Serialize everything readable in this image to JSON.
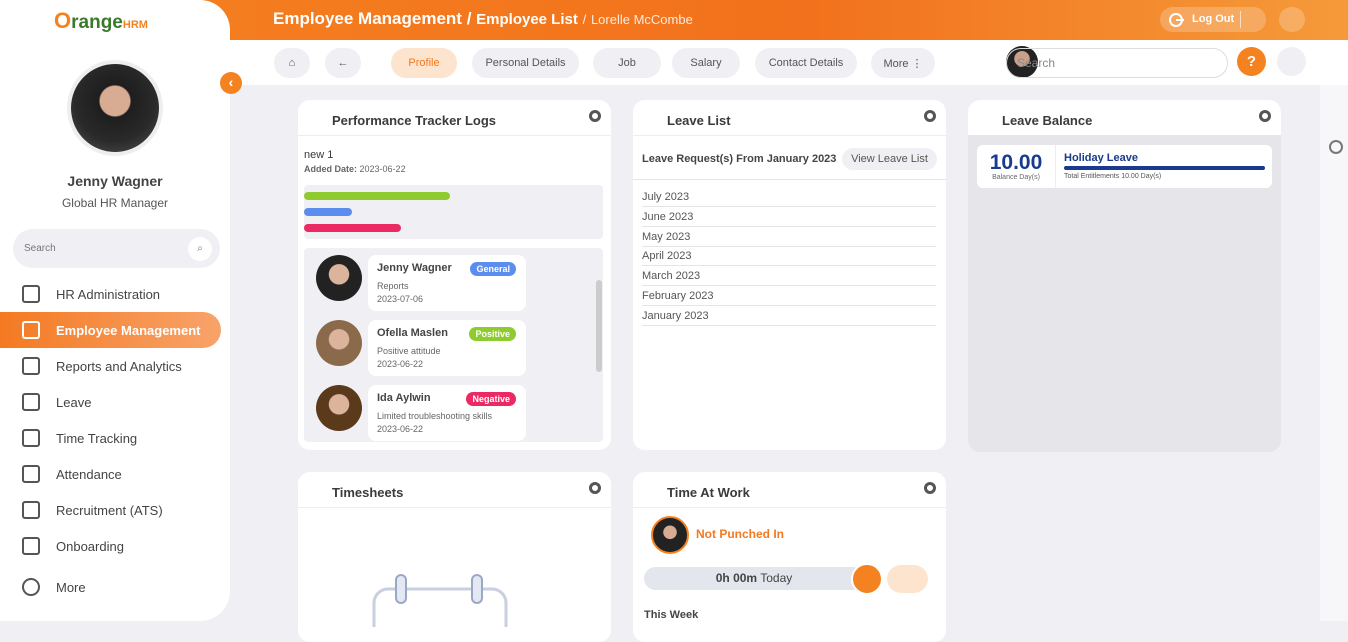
{
  "brand": {
    "name": "range",
    "suffix": "HRM"
  },
  "user": {
    "name": "Jenny Wagner",
    "role": "Global HR Manager"
  },
  "sidebar": {
    "search": "Search",
    "menu": [
      "HR Administration",
      "Employee Management",
      "Reports and Analytics",
      "Leave",
      "Time Tracking",
      "Attendance",
      "Recruitment (ATS)",
      "Onboarding",
      "More"
    ]
  },
  "header": {
    "module": "Employee Management",
    "separator": "/",
    "page": "Employee List",
    "employee": "Lorelle McCombe",
    "logout": "Log Out"
  },
  "toolbar": {
    "tabs": [
      "Profile",
      "Personal Details",
      "Job",
      "Salary",
      "Contact Details",
      "More"
    ],
    "search": "Search",
    "help": "?"
  },
  "widgets": {
    "performance": {
      "title": "Performance Tracker Logs",
      "log": "new 1",
      "added_label": "Added Date:",
      "added_date": "2023-06-22",
      "reviews": [
        {
          "name": "Jenny Wagner",
          "tag": "General",
          "note": "Reports",
          "date": "2023-07-06"
        },
        {
          "name": "Ofella Maslen",
          "tag": "Positive",
          "note": "Positive attitude",
          "date": "2023-06-22"
        },
        {
          "name": "Ida Aylwin",
          "tag": "Negative",
          "note": "Limited troubleshooting skills",
          "date": "2023-06-22"
        }
      ]
    },
    "leave_list": {
      "title": "Leave List",
      "heading": "Leave Request(s) From January 2023",
      "button": "View Leave List",
      "months": [
        "July 2023",
        "June 2023",
        "May 2023",
        "April 2023",
        "March 2023",
        "February 2023",
        "January 2023"
      ]
    },
    "leave_balance": {
      "title": "Leave Balance",
      "balance": "10.00",
      "balance_label": "Balance Day(s)",
      "type": "Holiday Leave",
      "entitlement": "Total Entitlements 10.00 Day(s)"
    },
    "timesheets": {
      "title": "Timesheets"
    },
    "time_at_work": {
      "title": "Time At Work",
      "status": "Not Punched In",
      "duration": "0h 00m",
      "period": "Today",
      "week": "This Week"
    }
  }
}
